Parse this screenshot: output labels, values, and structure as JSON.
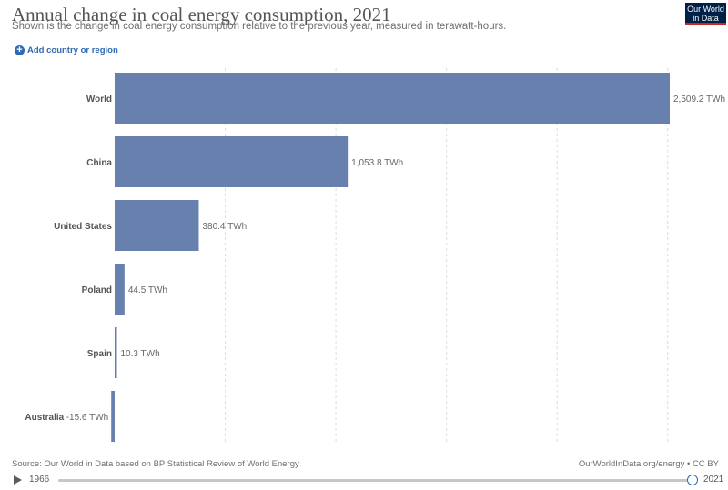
{
  "header": {
    "title": "Annual change in coal energy consumption, 2021",
    "subtitle": "Shown is the change in coal energy consumption relative to the previous year, measured in terawatt-hours.",
    "logo_line1": "Our World",
    "logo_line2": "in Data",
    "add_button_label": "Add country or region"
  },
  "chart_data": {
    "type": "bar",
    "orientation": "horizontal",
    "title": "Annual change in coal energy consumption, 2021",
    "unit": "TWh",
    "categories": [
      "World",
      "China",
      "United States",
      "Poland",
      "Spain",
      "Australia"
    ],
    "values": [
      2509.2,
      1053.8,
      380.4,
      44.5,
      10.3,
      -15.6
    ],
    "value_labels": [
      "2,509.2 TWh",
      "1,053.8 TWh",
      "380.4 TWh",
      "44.5 TWh",
      "10.3 TWh",
      "-15.6 TWh"
    ],
    "xlim": [
      0,
      2509.2
    ],
    "gridline_values": [
      0,
      500,
      1000,
      1500,
      2000,
      2500
    ],
    "grid": true,
    "bar_color": "#6780ae"
  },
  "footer": {
    "source": "Source: Our World in Data based on BP Statistical Review of World Energy",
    "license": "OurWorldInData.org/energy • CC BY"
  },
  "timeline": {
    "start_year": "1966",
    "end_year": "2021",
    "accent_color": "#2f69b5"
  }
}
